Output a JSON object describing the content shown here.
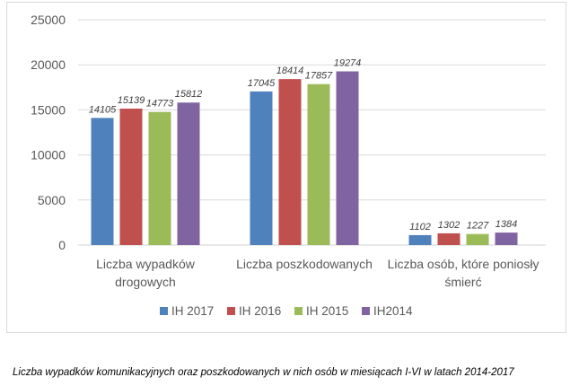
{
  "chart_data": {
    "type": "bar",
    "categories": [
      [
        "Liczba wypadków",
        "drogowych"
      ],
      [
        "Liczba poszkodowanych"
      ],
      [
        "Liczba osób, które poniosły",
        "śmierć"
      ]
    ],
    "series": [
      {
        "name": "IH 2017",
        "color": "#4f81bd",
        "values": [
          14105,
          17045,
          1102
        ]
      },
      {
        "name": "IH 2016",
        "color": "#c0504d",
        "values": [
          15139,
          18414,
          1302
        ]
      },
      {
        "name": "IH 2015",
        "color": "#9bbb59",
        "values": [
          14773,
          17857,
          1227
        ]
      },
      {
        "name": "IH2014",
        "color": "#8064a2",
        "values": [
          15812,
          19274,
          1384
        ]
      }
    ],
    "yticks": [
      0,
      5000,
      10000,
      15000,
      20000,
      25000
    ],
    "ylim": [
      0,
      25000
    ],
    "grid": true,
    "legend": "bottom",
    "data_labels": true
  },
  "caption": "Liczba wypadków komunikacyjnych oraz poszkodowanych w nich osób w miesiącach I-VI w latach 2014-2017"
}
